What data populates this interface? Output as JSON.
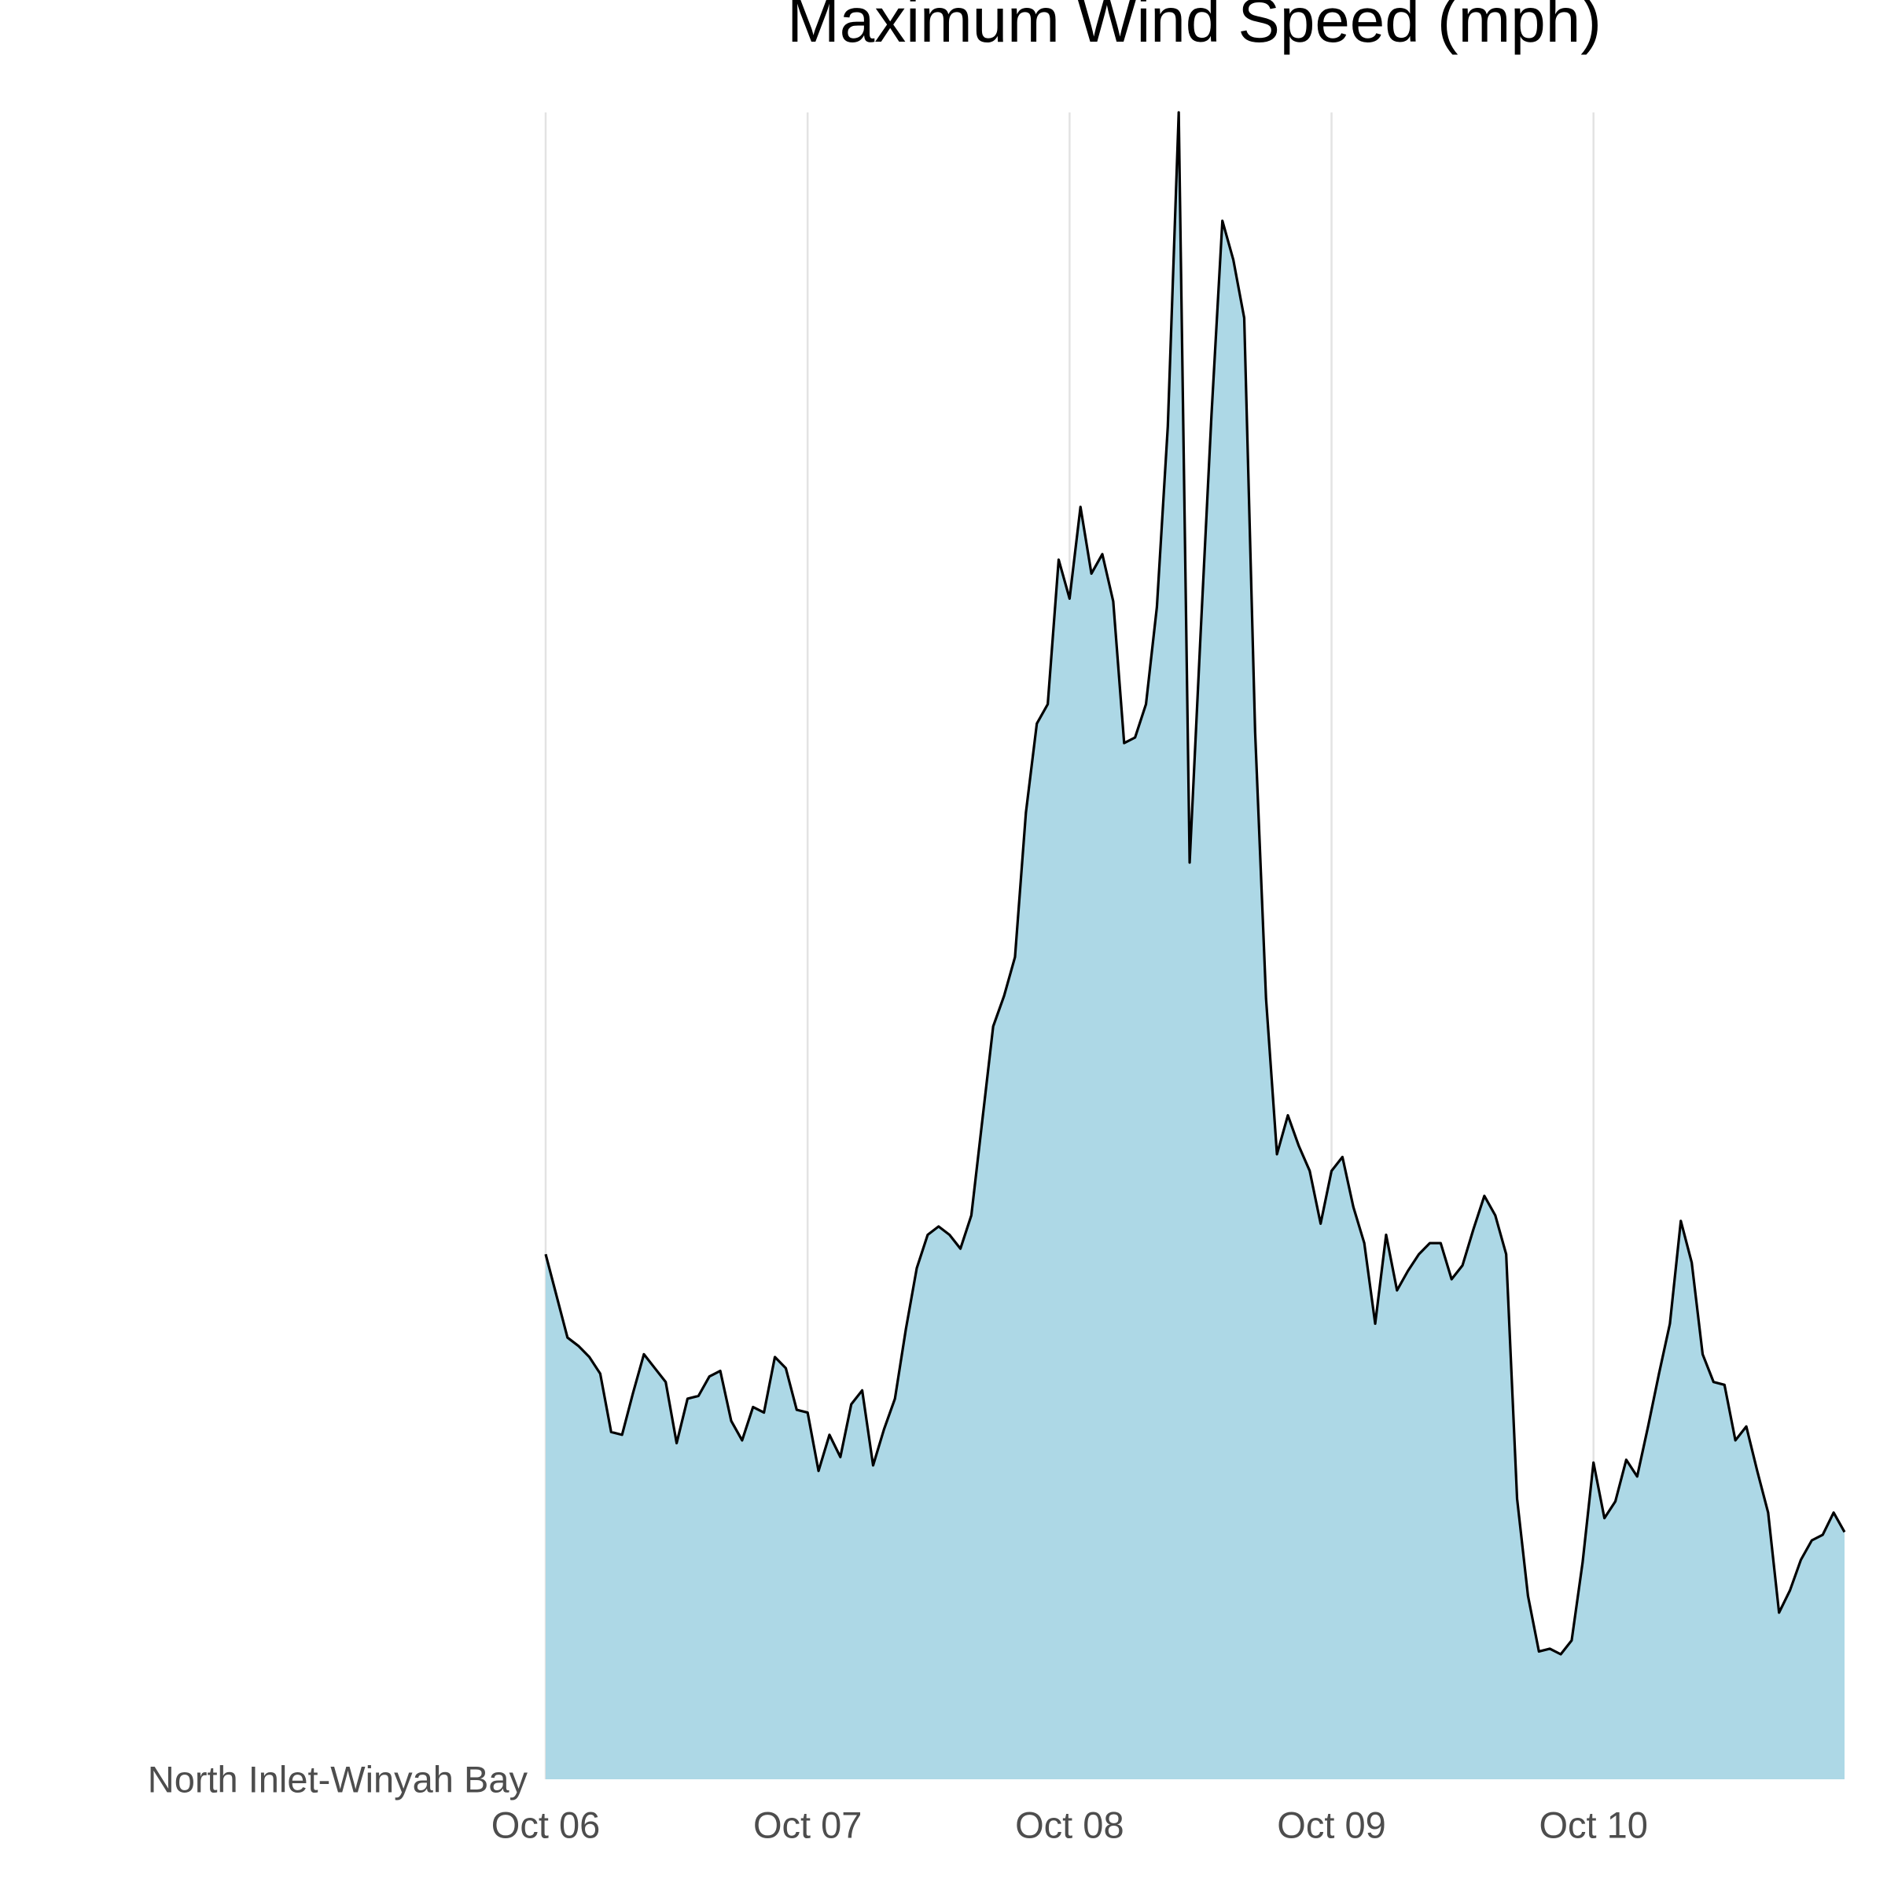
{
  "chart_data": {
    "type": "area",
    "title": "Maximum Wind Speed (mph)",
    "x": [
      0,
      1,
      2,
      3,
      4,
      5,
      6,
      7,
      8,
      9,
      10,
      11,
      12,
      13,
      14,
      15,
      16,
      17,
      18,
      19,
      20,
      21,
      22,
      23,
      24,
      25,
      26,
      27,
      28,
      29,
      30,
      31,
      32,
      33,
      34,
      35,
      36,
      37,
      38,
      39,
      40,
      41,
      42,
      43,
      44,
      45,
      46,
      47,
      48,
      49,
      50,
      51,
      52,
      53,
      54,
      55,
      56,
      57,
      58,
      59,
      60,
      61,
      62,
      63,
      64,
      65,
      66,
      67,
      68,
      69,
      70,
      71,
      72,
      73,
      74,
      75,
      76,
      77,
      78,
      79,
      80,
      81,
      82,
      83,
      84,
      85,
      86,
      87,
      88,
      89,
      90,
      91,
      92,
      93,
      94,
      95,
      96,
      97,
      98,
      99,
      100,
      101,
      102,
      103,
      104,
      105,
      106,
      107,
      108,
      109,
      110,
      111,
      112,
      113,
      114,
      115,
      116,
      117,
      118,
      119
    ],
    "series": [
      {
        "name": "North Inlet-Winyah Bay",
        "color": "#add8e6",
        "line_color": "#000000",
        "values": [
          18.9,
          17.4,
          15.9,
          15.6,
          15.2,
          14.6,
          12.5,
          12.4,
          13.9,
          15.3,
          14.8,
          14.3,
          12.1,
          13.7,
          13.8,
          14.5,
          14.7,
          12.9,
          12.2,
          13.4,
          13.2,
          15.2,
          14.8,
          13.3,
          13.2,
          11.1,
          12.4,
          11.6,
          13.5,
          14.0,
          11.3,
          12.6,
          13.7,
          16.2,
          18.4,
          19.6,
          19.9,
          19.6,
          19.1,
          20.3,
          23.7,
          27.1,
          28.2,
          29.6,
          34.8,
          38.0,
          38.7,
          43.9,
          42.5,
          45.8,
          43.4,
          44.1,
          42.4,
          37.3,
          37.5,
          38.7,
          42.2,
          48.7,
          60.0,
          33.0,
          41.2,
          49.1,
          56.1,
          54.7,
          52.6,
          37.7,
          28.1,
          22.5,
          23.9,
          22.8,
          21.9,
          20.0,
          21.9,
          22.4,
          20.6,
          19.3,
          16.4,
          19.6,
          17.6,
          18.3,
          18.9,
          19.3,
          19.3,
          18.0,
          18.5,
          19.8,
          21.0,
          20.3,
          18.9,
          10.1,
          6.6,
          4.6,
          4.7,
          4.5,
          5.0,
          7.8,
          11.4,
          9.4,
          10.0,
          11.5,
          10.9,
          12.7,
          14.6,
          16.4,
          20.1,
          18.6,
          15.3,
          14.3,
          14.2,
          12.2,
          12.7,
          11.1,
          9.6,
          6.0,
          6.8,
          7.9,
          8.6,
          8.8,
          9.6,
          8.9
        ]
      }
    ],
    "xlim": [
      0,
      119
    ],
    "xticks": [
      {
        "value": 0,
        "label": "Oct 06"
      },
      {
        "value": 24,
        "label": "Oct 07"
      },
      {
        "value": 48,
        "label": "Oct 08"
      },
      {
        "value": 72,
        "label": "Oct 09"
      },
      {
        "value": 96,
        "label": "Oct 10"
      }
    ],
    "ylim": [
      0,
      60
    ],
    "grid": true,
    "grid_color": "#e3e3e3"
  }
}
